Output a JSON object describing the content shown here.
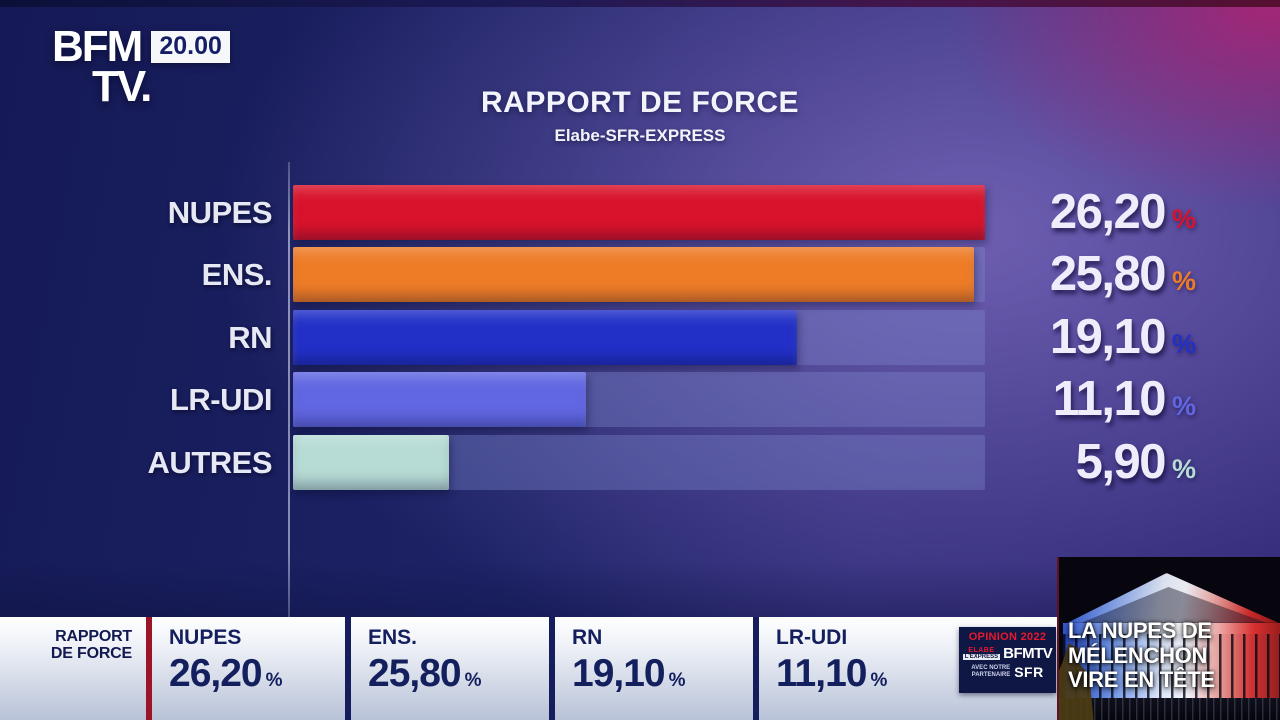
{
  "channel": {
    "name_top": "BFM",
    "name_bottom": "TV.",
    "time": "20.00"
  },
  "chart_data": {
    "type": "bar",
    "orientation": "horizontal",
    "title": "RAPPORT DE FORCE",
    "subtitle": "Elabe-SFR-EXPRESS",
    "unit": "%",
    "categories": [
      "NUPES",
      "ENS.",
      "RN",
      "LR-UDI",
      "AUTRES"
    ],
    "values": [
      26.2,
      25.8,
      19.1,
      11.1,
      5.9
    ],
    "value_labels": [
      "26,20",
      "25,80",
      "19,10",
      "11,10",
      "5,90"
    ],
    "bar_colors": [
      "#d9132b",
      "#ee7c27",
      "#2230c8",
      "#6167e2",
      "#b7dbd5"
    ],
    "max_scale": 26.2,
    "xlim": [
      0,
      26.2
    ],
    "grid": false,
    "legend": false
  },
  "banner": {
    "section_label_line1": "RAPPORT",
    "section_label_line2": "DE FORCE",
    "items": [
      {
        "party": "NUPES",
        "value": "26,20",
        "unit": "%"
      },
      {
        "party": "ENS.",
        "value": "25,80",
        "unit": "%"
      },
      {
        "party": "RN",
        "value": "19,10",
        "unit": "%"
      },
      {
        "party": "LR-UDI",
        "value": "11,10",
        "unit": "%"
      }
    ],
    "badge": {
      "line1": "OPINION 2022",
      "brand_elabe": "ELABE",
      "brand_express": "L'EXPRESS",
      "brand_bfmtv": "BFMTV",
      "partner_label_line1": "AVEC NOTRE",
      "partner_label_line2": "PARTENAIRE",
      "partner": "SFR"
    }
  },
  "news_box": {
    "headline_lines": [
      "LA NUPES DE",
      "MÉLENCHON",
      "VIRE EN TÊTE"
    ]
  }
}
